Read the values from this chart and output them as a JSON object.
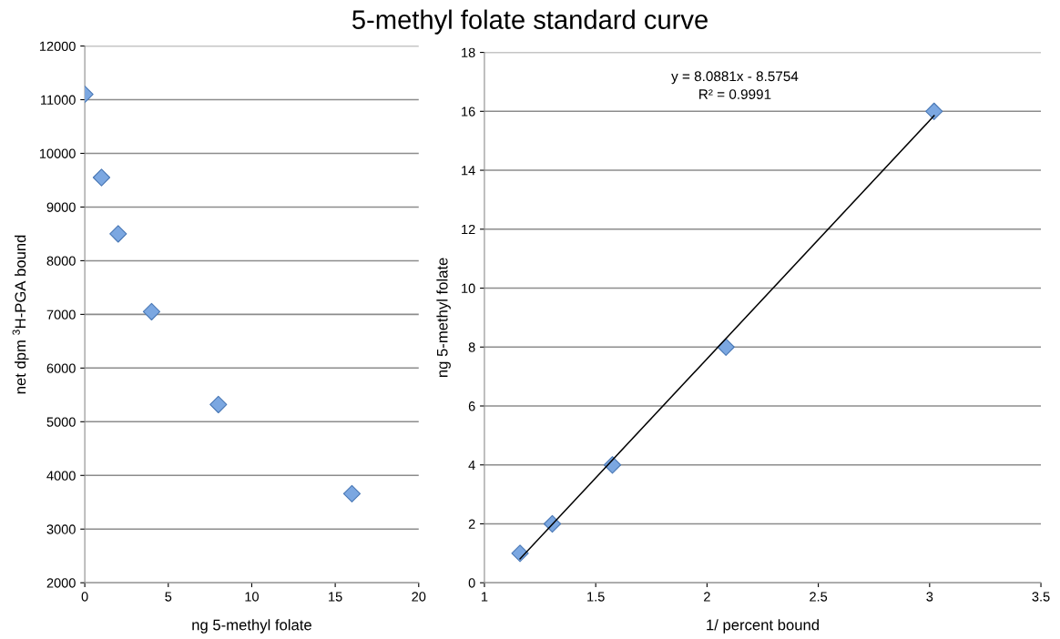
{
  "chart_data": [
    {
      "type": "scatter",
      "xlabel": "ng 5-methyl folate",
      "ylabel": "net dpm $^{3}$H-PGA bound",
      "xlim": [
        0,
        20
      ],
      "xticks": [
        0,
        5,
        10,
        15,
        20
      ],
      "ylim": [
        2000,
        12000
      ],
      "yticks": [
        2000,
        3000,
        4000,
        5000,
        6000,
        7000,
        8000,
        9000,
        10000,
        11000,
        12000
      ],
      "grid": "y",
      "marker": "diamond",
      "series": [
        {
          "type": "scatter",
          "color": "#7ba7e1",
          "x": [
            0,
            1,
            2,
            4,
            8,
            16
          ],
          "values": [
            11100,
            9550,
            8500,
            7050,
            5320,
            3660
          ]
        }
      ]
    },
    {
      "type": "scatter",
      "title": "5-methyl folate standard curve",
      "xlabel": "1/ percent bound",
      "ylabel": "ng 5-methyl folate",
      "xlim": [
        1,
        3.5
      ],
      "xticks": [
        1,
        1.5,
        2,
        2.5,
        3,
        3.5
      ],
      "ylim": [
        0,
        18
      ],
      "yticks": [
        0,
        2,
        4,
        6,
        8,
        10,
        12,
        14,
        16,
        18
      ],
      "grid": "y",
      "marker": "diamond",
      "annotations": [
        "y = 8.0881x - 8.5754\nR² = 0.9991"
      ],
      "series": [
        {
          "type": "line",
          "color": "#000000",
          "marker": "none",
          "x": [
            1.16,
            3.02
          ],
          "values": [
            0.81,
            15.85
          ]
        },
        {
          "type": "scatter",
          "color": "#7ba7e1",
          "x": [
            1.16,
            1.305,
            1.575,
            2.085,
            3.02
          ],
          "values": [
            1,
            2,
            4,
            8,
            16
          ]
        }
      ]
    }
  ]
}
